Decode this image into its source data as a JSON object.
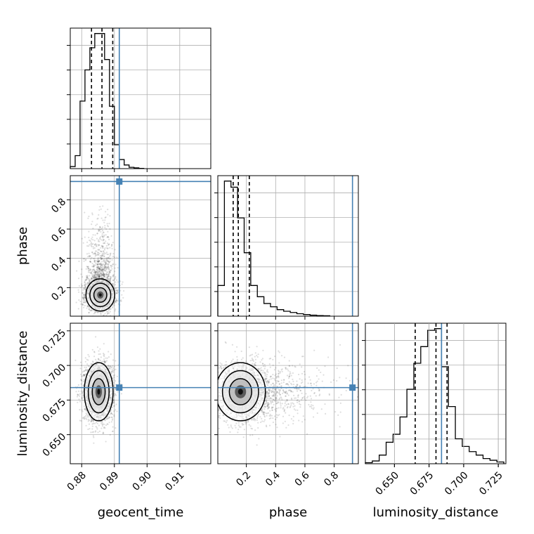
{
  "chart_data": {
    "type": "corner",
    "colors": {
      "truth": "#4682b4",
      "hist": "#000000",
      "grid": "#b0b0b0",
      "sample": "#000000"
    },
    "grid": true,
    "parameters": [
      {
        "name": "geocent_time",
        "label": "geocent_time",
        "range": [
          0.8765,
          0.9195
        ],
        "ticks": [
          0.88,
          0.89,
          0.9,
          0.91
        ],
        "tick_labels": [
          "0.88",
          "0.89",
          "0.90",
          "0.91"
        ],
        "truth": 0.8915,
        "quantiles": [
          0.883,
          0.8862,
          0.8895
        ],
        "hist": {
          "edges": [
            0.8765,
            0.878,
            0.8795,
            0.881,
            0.8825,
            0.884,
            0.8855,
            0.887,
            0.8885,
            0.89,
            0.8915,
            0.893,
            0.8945,
            0.896,
            0.8975,
            0.899
          ],
          "counts": [
            8,
            50,
            260,
            380,
            465,
            520,
            520,
            420,
            240,
            92,
            35,
            14,
            5,
            3,
            1
          ]
        }
      },
      {
        "name": "phase",
        "label": "phase",
        "range": [
          0.005,
          0.965
        ],
        "ticks": [
          0.2,
          0.4,
          0.6,
          0.8
        ],
        "tick_labels": [
          "0.2",
          "0.4",
          "0.6",
          "0.8"
        ],
        "truth": 0.925,
        "quantiles": [
          0.11,
          0.145,
          0.22
        ],
        "hist": {
          "edges": [
            0.005,
            0.05,
            0.095,
            0.14,
            0.185,
            0.23,
            0.275,
            0.32,
            0.365,
            0.41,
            0.455,
            0.5,
            0.545,
            0.59,
            0.635,
            0.68,
            0.725,
            0.77
          ],
          "counts": [
            150,
            660,
            630,
            480,
            310,
            150,
            95,
            62,
            46,
            32,
            24,
            18,
            12,
            8,
            5,
            3,
            2
          ]
        }
      },
      {
        "name": "luminosity_distance",
        "label": "luminosity_distance",
        "range": [
          0.629,
          0.7305
        ],
        "ticks": [
          0.65,
          0.675,
          0.7,
          0.725
        ],
        "tick_labels": [
          "0.650",
          "0.675",
          "0.700",
          "0.725"
        ],
        "truth": 0.684,
        "quantiles": [
          0.665,
          0.68,
          0.688
        ],
        "hist": {
          "edges": [
            0.629,
            0.634,
            0.639,
            0.644,
            0.649,
            0.654,
            0.659,
            0.664,
            0.669,
            0.674,
            0.679,
            0.684,
            0.689,
            0.694,
            0.699,
            0.704,
            0.709,
            0.714,
            0.719,
            0.724,
            0.729
          ],
          "counts": [
            3,
            8,
            25,
            62,
            85,
            135,
            215,
            290,
            338,
            385,
            390,
            280,
            165,
            72,
            50,
            35,
            25,
            15,
            10,
            5
          ]
        }
      }
    ],
    "panels": [
      {
        "x": "geocent_time",
        "y": "phase",
        "center": [
          0.8857,
          0.15
        ],
        "spread": [
          0.0022,
          0.055
        ],
        "truth": [
          0.8915,
          0.925
        ],
        "n_samples": 2600
      },
      {
        "x": "geocent_time",
        "y": "luminosity_distance",
        "center": [
          0.8852,
          0.681
        ],
        "spread": [
          0.0022,
          0.0105
        ],
        "truth": [
          0.8915,
          0.684
        ],
        "n_samples": 2600
      },
      {
        "x": "phase",
        "y": "luminosity_distance",
        "center": [
          0.16,
          0.681
        ],
        "spread": [
          0.085,
          0.0105
        ],
        "truth": [
          0.925,
          0.684
        ],
        "n_samples": 2600
      }
    ]
  }
}
